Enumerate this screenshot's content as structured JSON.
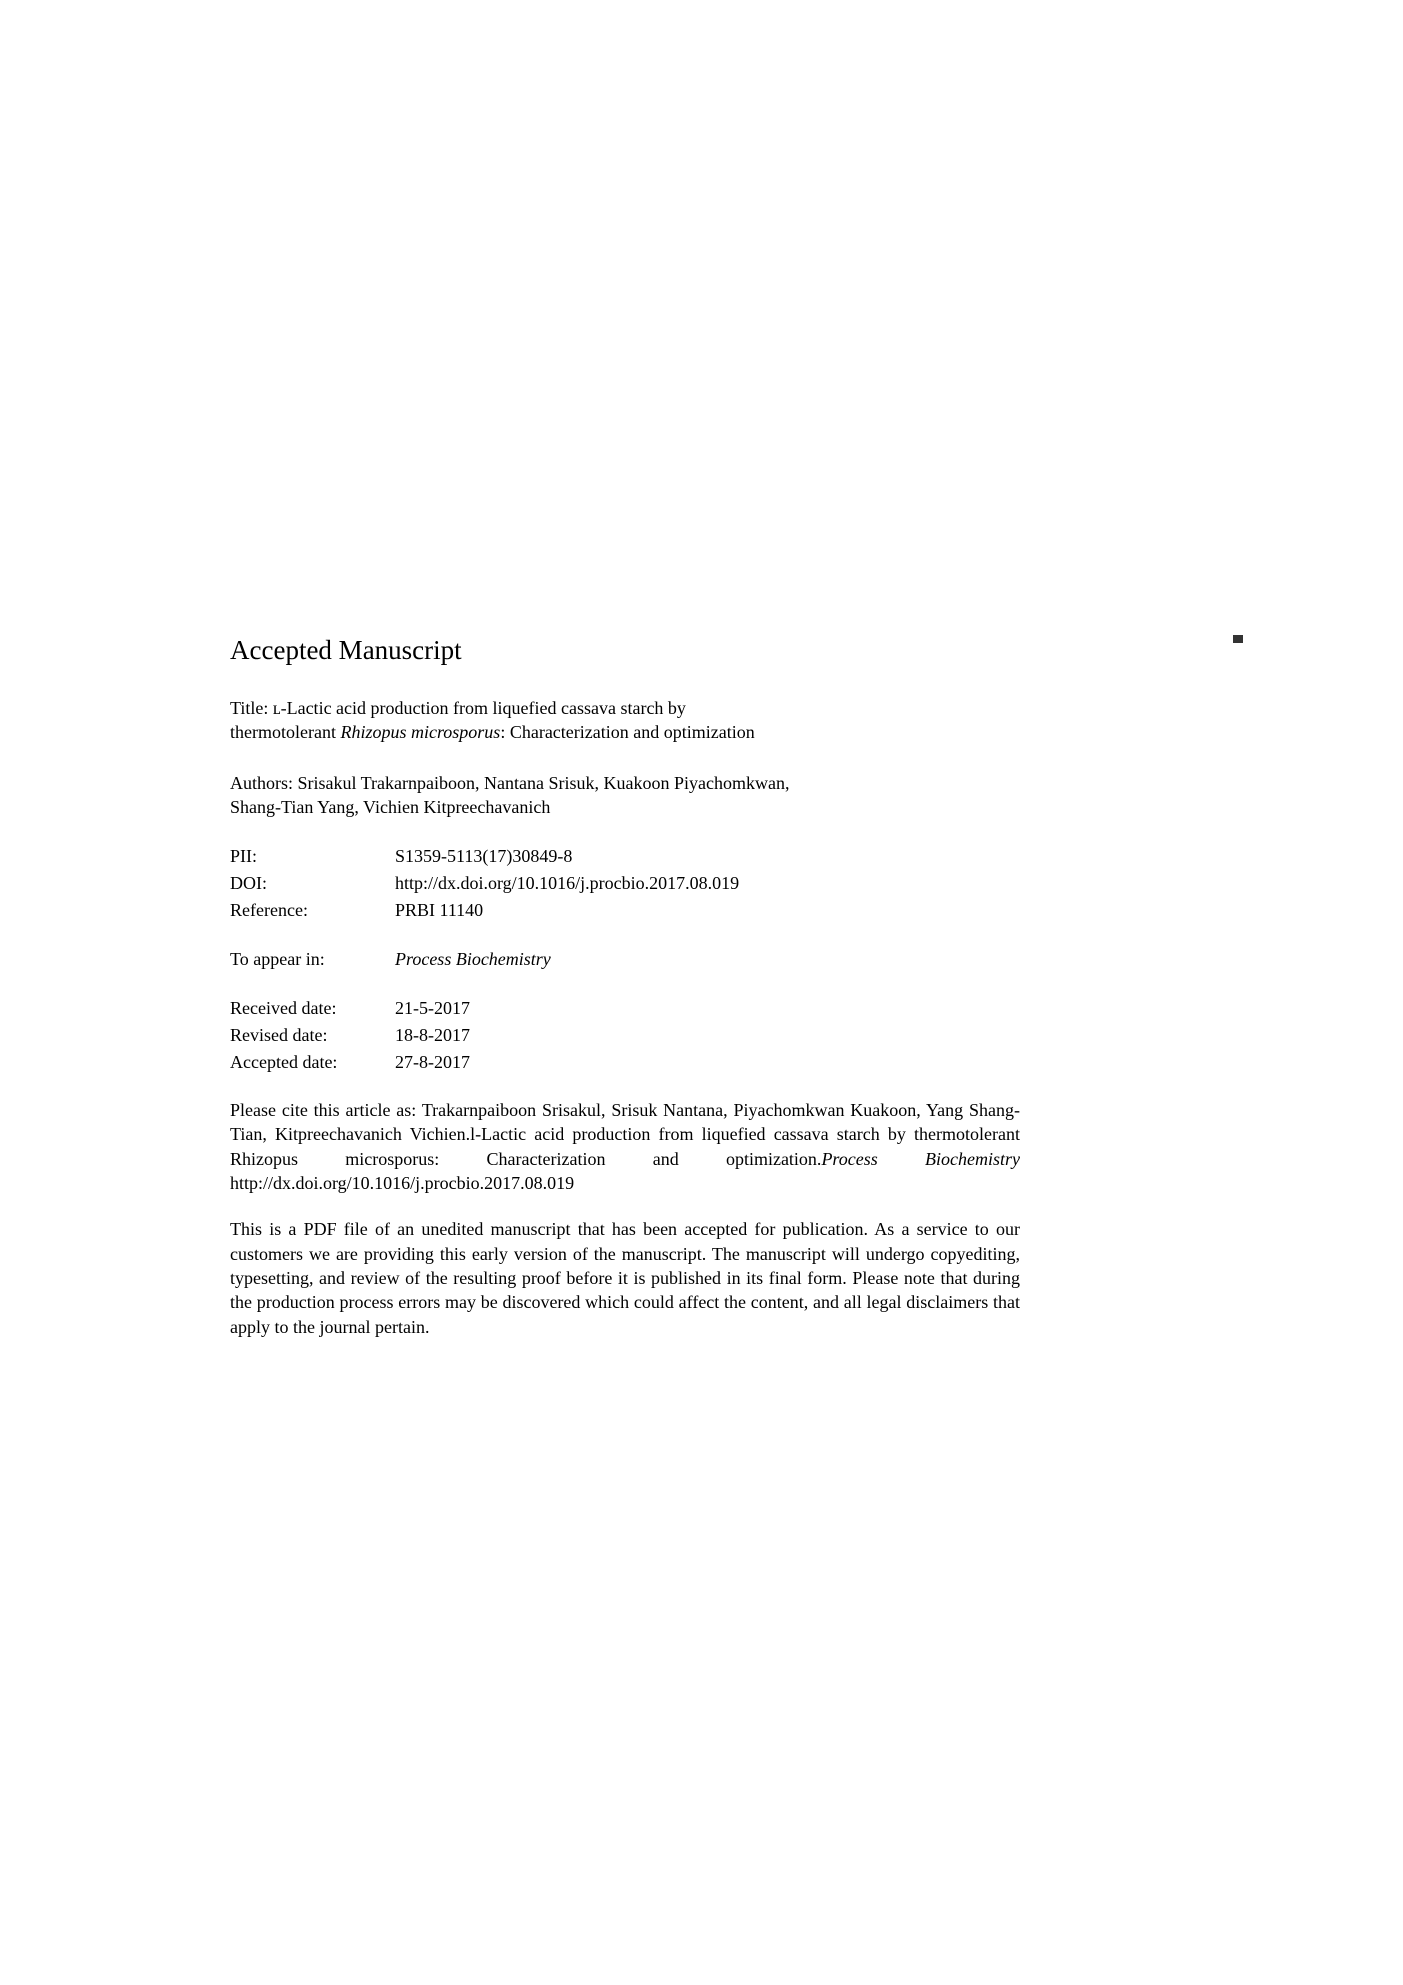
{
  "heading": "Accepted Manuscript",
  "titleLabel": "Title: ",
  "titlePart1": "ʟ-Lactic acid production from liquefied cassava starch by thermotolerant ",
  "titleItalic": "Rhizopus microsporus",
  "titlePart2": ": Characterization and optimization",
  "authorsLabel": "Authors: ",
  "authors": "Srisakul Trakarnpaiboon, Nantana Srisuk, Kuakoon Piyachomkwan, Shang-Tian Yang, Vichien Kitpreechavanich",
  "meta": {
    "pii": {
      "label": "PII:",
      "value": "S1359-5113(17)30849-8"
    },
    "doi": {
      "label": "DOI:",
      "value": "http://dx.doi.org/10.1016/j.procbio.2017.08.019"
    },
    "reference": {
      "label": "Reference:",
      "value": "PRBI 11140"
    },
    "toAppearIn": {
      "label": "To appear in:",
      "value": "Process Biochemistry"
    },
    "received": {
      "label": "Received date:",
      "value": "21-5-2017"
    },
    "revised": {
      "label": "Revised date:",
      "value": "18-8-2017"
    },
    "accepted": {
      "label": "Accepted date:",
      "value": "27-8-2017"
    }
  },
  "citation": {
    "prefix": "Please cite this article as: Trakarnpaiboon Srisakul, Srisuk Nantana, Piyachomkwan Kuakoon, Yang Shang-Tian, Kitpreechavanich Vichien.l-Lactic acid production from liquefied cassava starch by thermotolerant Rhizopus microsporus: Characterization and optimization.",
    "journal": "Process Biochemistry",
    "suffix": " http://dx.doi.org/10.1016/j.procbio.2017.08.019"
  },
  "disclaimer": "This is a PDF file of an unedited manuscript that has been accepted for publication. As a service to our customers we are providing this early version of the manuscript. The manuscript will undergo copyediting, typesetting, and review of the resulting proof before it is published in its final form. Please note that during the production process errors may be discovered which could affect the content, and all legal disclaimers that apply to the journal pertain.",
  "colors": {
    "background": "#ffffff",
    "text": "#000000"
  },
  "fonts": {
    "body": "Times New Roman",
    "headingSize": 27,
    "bodySize": 18
  }
}
